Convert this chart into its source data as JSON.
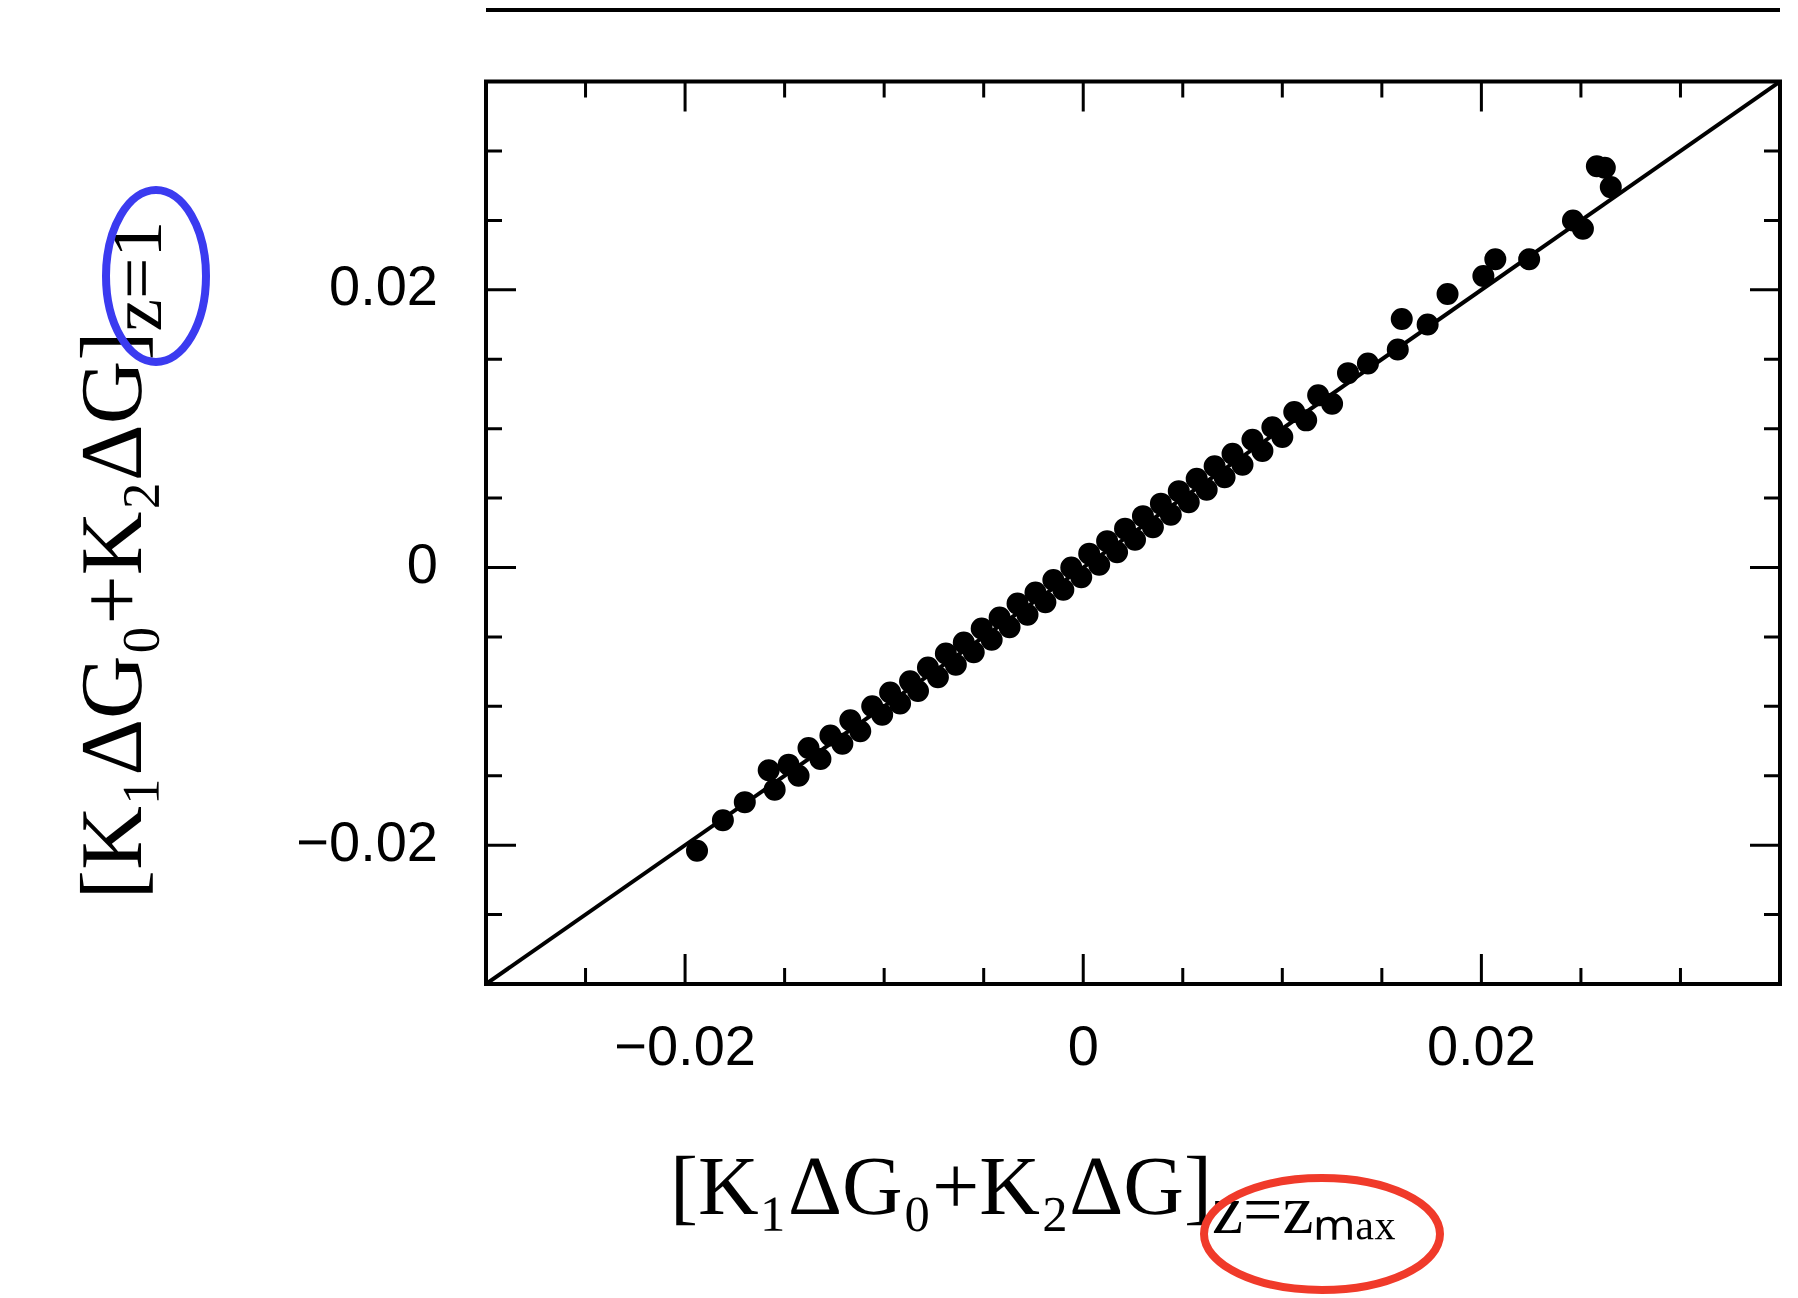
{
  "chart_data": {
    "type": "scatter",
    "xlabel": "[K₁ΔG₀+K₂ΔG]$_{z=zₘₐₓ}$",
    "ylabel": "[K₁ΔG₀+K₂ΔG]$_{z=1}$",
    "xlim": [
      -0.03,
      0.035
    ],
    "ylim": [
      -0.03,
      0.035
    ],
    "xticks": [
      {
        "value": -0.025,
        "label": null
      },
      {
        "value": -0.02,
        "label": "−0.02"
      },
      {
        "value": -0.015,
        "label": null
      },
      {
        "value": -0.01,
        "label": null
      },
      {
        "value": -0.005,
        "label": null
      },
      0,
      {
        "value": 0.005,
        "label": null
      },
      {
        "value": 0.01,
        "label": null
      },
      {
        "value": 0.015,
        "label": null
      },
      0.02,
      {
        "value": 0.025,
        "label": null
      },
      {
        "value": 0.03,
        "label": null
      }
    ],
    "yticks": [
      {
        "value": -0.025,
        "label": null
      },
      {
        "value": -0.02,
        "label": "−0.02"
      },
      {
        "value": -0.015,
        "label": null
      },
      {
        "value": -0.01,
        "label": null
      },
      {
        "value": -0.005,
        "label": null
      },
      0,
      {
        "value": 0.005,
        "label": null
      },
      {
        "value": 0.01,
        "label": null
      },
      {
        "value": 0.015,
        "label": null
      },
      0.02,
      {
        "value": 0.025,
        "label": null
      },
      {
        "value": 0.03,
        "label": null
      }
    ],
    "legend": false,
    "series": [
      {
        "type": "scatter",
        "color": "#000000",
        "marker": "circle",
        "x": [
          -0.0194,
          -0.0181,
          -0.017,
          -0.0158,
          -0.0155,
          -0.0148,
          -0.0143,
          -0.0138,
          -0.0132,
          -0.0127,
          -0.0121,
          -0.0117,
          -0.0112,
          -0.0106,
          -0.0101,
          -0.0097,
          -0.0092,
          -0.0087,
          -0.0083,
          -0.0078,
          -0.0073,
          -0.0069,
          -0.0064,
          -0.006,
          -0.0055,
          -0.0051,
          -0.0046,
          -0.0042,
          -0.0037,
          -0.0033,
          -0.0028,
          -0.0024,
          -0.0019,
          -0.0015,
          -0.001,
          -0.0006,
          -0.0001,
          0.0003,
          0.0008,
          0.0012,
          0.0017,
          0.0021,
          0.0026,
          0.003,
          0.0035,
          0.0039,
          0.0044,
          0.0048,
          0.0053,
          0.0057,
          0.0062,
          0.0066,
          0.0071,
          0.0075,
          0.008,
          0.0085,
          0.009,
          0.0095,
          0.01,
          0.0106,
          0.0112,
          0.0118,
          0.0125,
          0.0133,
          0.0143,
          0.0158,
          0.016,
          0.0173,
          0.0183,
          0.0201,
          0.0207,
          0.0224,
          0.0246,
          0.0251,
          0.0258,
          0.0262,
          0.0265
        ],
        "values": [
          -0.0204,
          -0.0182,
          -0.0169,
          -0.0146,
          -0.016,
          -0.0142,
          -0.015,
          -0.013,
          -0.0138,
          -0.0121,
          -0.0127,
          -0.011,
          -0.0118,
          -0.01,
          -0.0106,
          -0.009,
          -0.0098,
          -0.0082,
          -0.0089,
          -0.0072,
          -0.0079,
          -0.0062,
          -0.007,
          -0.0054,
          -0.0061,
          -0.0044,
          -0.0052,
          -0.0036,
          -0.0043,
          -0.0026,
          -0.0034,
          -0.0018,
          -0.0025,
          -0.0009,
          -0.0016,
          0.0,
          -0.0007,
          0.001,
          0.0002,
          0.0019,
          0.0011,
          0.0028,
          0.002,
          0.0037,
          0.0029,
          0.0046,
          0.0038,
          0.0055,
          0.0047,
          0.0064,
          0.0056,
          0.0073,
          0.0065,
          0.0082,
          0.0074,
          0.0092,
          0.0084,
          0.0101,
          0.0094,
          0.0112,
          0.0106,
          0.0124,
          0.0118,
          0.014,
          0.0147,
          0.0157,
          0.0179,
          0.0175,
          0.0197,
          0.021,
          0.0222,
          0.0222,
          0.025,
          0.0244,
          0.0289,
          0.0288,
          0.0274
        ]
      },
      {
        "type": "line",
        "color": "#000000",
        "marker": "none",
        "line_style": "solid",
        "x": [
          -0.03,
          0.035
        ],
        "values": [
          -0.03,
          0.035
        ]
      }
    ]
  }
}
